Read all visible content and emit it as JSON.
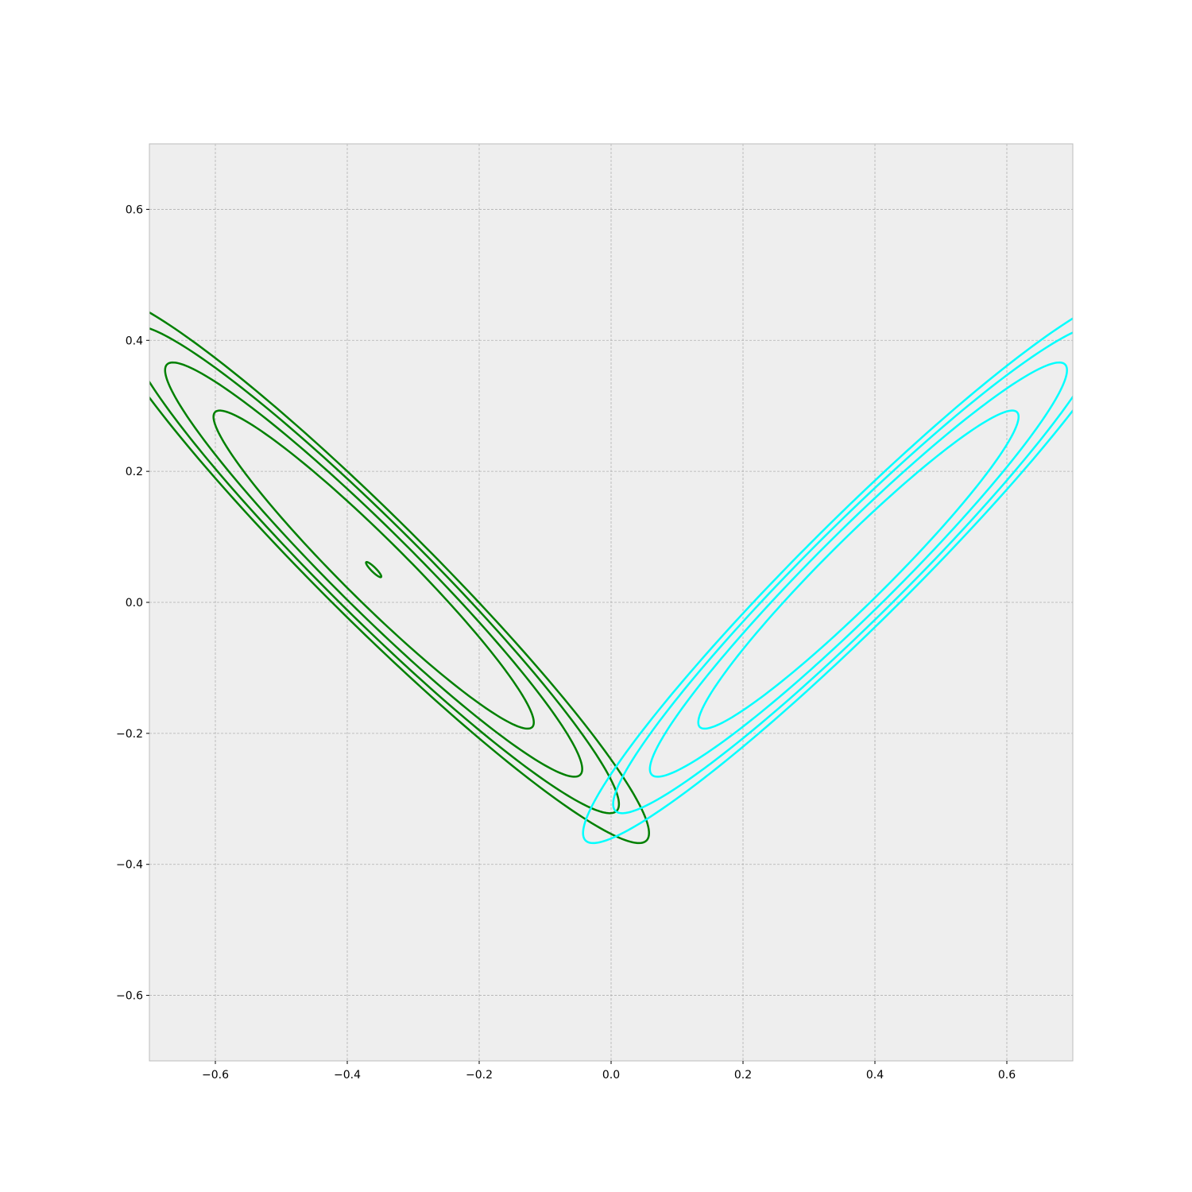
{
  "chart_data": {
    "type": "contour",
    "title": "",
    "xlabel": "",
    "ylabel": "",
    "xlim": [
      -0.7,
      0.7
    ],
    "ylim": [
      -0.7,
      0.7
    ],
    "grid": true,
    "x_ticks": [
      -0.6,
      -0.4,
      -0.2,
      0.0,
      0.2,
      0.4,
      0.6
    ],
    "x_tick_labels": [
      "−0.6",
      "−0.4",
      "−0.2",
      "0.0",
      "0.2",
      "0.4",
      "0.6"
    ],
    "y_ticks": [
      -0.6,
      -0.4,
      -0.2,
      0.0,
      0.2,
      0.4,
      0.6
    ],
    "y_tick_labels": [
      "−0.6",
      "−0.4",
      "−0.2",
      "0.0",
      "0.2",
      "0.4",
      "0.6"
    ],
    "colors": {
      "plot_background": "#eeeeee",
      "grid": "#b0b0b0",
      "frame": "#bcbcbc"
    },
    "series": [
      {
        "color": "#008000",
        "center": [
          -0.36,
          0.05
        ],
        "rotation_deg": -45,
        "contours": [
          {
            "semi_major": 0.016,
            "semi_minor": 0.0035
          },
          {
            "semi_major": 0.34,
            "semi_minor": 0.048
          },
          {
            "semi_major": 0.443,
            "semi_minor": 0.061
          },
          {
            "semi_major": 0.521,
            "semi_minor": 0.072
          },
          {
            "semi_major": 0.585,
            "semi_minor": 0.08
          }
        ]
      },
      {
        "color": "#00ffff",
        "center": [
          0.375,
          0.05
        ],
        "rotation_deg": 45,
        "contours": [
          {
            "semi_major": 0.34,
            "semi_minor": 0.048
          },
          {
            "semi_major": 0.443,
            "semi_minor": 0.061
          },
          {
            "semi_major": 0.521,
            "semi_minor": 0.072
          },
          {
            "semi_major": 0.585,
            "semi_minor": 0.08
          }
        ]
      }
    ]
  }
}
